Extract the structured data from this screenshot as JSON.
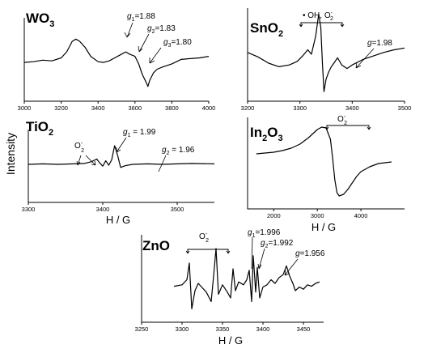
{
  "y_axis_label": "Intensity",
  "chart_data": [
    {
      "id": "wo3",
      "type": "line",
      "title": "WO",
      "title_sub": "3",
      "xlim": [
        3000,
        4000
      ],
      "xticks": [
        3000,
        3200,
        3400,
        3600,
        3800,
        4000
      ],
      "xlabel": "",
      "series": [
        {
          "x": [
            3000,
            3050,
            3100,
            3150,
            3200,
            3230,
            3260,
            3280,
            3300,
            3330,
            3360,
            3400,
            3430,
            3460,
            3490,
            3520,
            3550,
            3570,
            3600,
            3620,
            3640,
            3660,
            3670,
            3680,
            3700,
            3720,
            3750,
            3800,
            3850,
            3900,
            3950,
            4000
          ],
          "y": [
            0.44,
            0.45,
            0.47,
            0.46,
            0.5,
            0.58,
            0.72,
            0.75,
            0.72,
            0.64,
            0.52,
            0.45,
            0.44,
            0.46,
            0.5,
            0.54,
            0.58,
            0.55,
            0.52,
            0.42,
            0.28,
            0.18,
            0.12,
            0.2,
            0.3,
            0.35,
            0.38,
            0.42,
            0.48,
            0.49,
            0.5,
            0.52
          ]
        }
      ],
      "annotations": [
        {
          "letter": "g",
          "sub": "1",
          "value": "=1.88"
        },
        {
          "letter": "g",
          "sub": "2",
          "value": "=1.83"
        },
        {
          "letter": "g",
          "sub": "3",
          "value": "=1.80"
        }
      ]
    },
    {
      "id": "sno2",
      "type": "line",
      "title": "SnO",
      "title_sub": "2",
      "xlim": [
        3200,
        3500
      ],
      "xticks": [
        3200,
        3300,
        3400,
        3500
      ],
      "xlabel": "",
      "series": [
        {
          "x": [
            3200,
            3220,
            3240,
            3260,
            3280,
            3295,
            3305,
            3315,
            3322,
            3330,
            3336,
            3340,
            3343,
            3346,
            3350,
            3355,
            3360,
            3365,
            3372,
            3380,
            3390,
            3400,
            3420,
            3440,
            3460,
            3480,
            3500
          ],
          "y": [
            0.52,
            0.47,
            0.4,
            0.36,
            0.38,
            0.42,
            0.48,
            0.55,
            0.5,
            0.7,
            0.95,
            0.8,
            0.4,
            0.08,
            0.22,
            0.3,
            0.36,
            0.4,
            0.46,
            0.38,
            0.34,
            0.38,
            0.44,
            0.48,
            0.52,
            0.55,
            0.57
          ]
        }
      ],
      "annotations": [
        {
          "text": "• OH, O",
          "sup": "-",
          "sub": "2"
        },
        {
          "letter": "g",
          "value": "=1.98"
        }
      ]
    },
    {
      "id": "tio2",
      "type": "line",
      "title": "TiO",
      "title_sub": "2",
      "xlim": [
        3300,
        3550
      ],
      "xticks": [
        3300,
        3400,
        3500
      ],
      "xlabel": "H / G",
      "series": [
        {
          "x": [
            3300,
            3320,
            3340,
            3360,
            3375,
            3385,
            3392,
            3396,
            3400,
            3404,
            3408,
            3412,
            3416,
            3420,
            3424,
            3430,
            3440,
            3460,
            3480,
            3500,
            3520,
            3550
          ],
          "y": [
            0.4,
            0.41,
            0.4,
            0.41,
            0.42,
            0.46,
            0.52,
            0.43,
            0.36,
            0.48,
            0.38,
            0.5,
            0.82,
            0.6,
            0.33,
            0.37,
            0.4,
            0.41,
            0.4,
            0.41,
            0.42,
            0.41
          ]
        }
      ],
      "annotations": [
        {
          "text": "O",
          "sup": "-",
          "sub": "2"
        },
        {
          "letter": "g",
          "sub": "1",
          "value": " = 1.99"
        },
        {
          "letter": "g",
          "sub": "2",
          "value": " = 1.96"
        }
      ]
    },
    {
      "id": "in2o3",
      "type": "line",
      "title": "In",
      "title_sub": "2",
      "title_rest": "O",
      "title_sub2": "3",
      "xlim": [
        1400,
        5000
      ],
      "xticks": [
        2000,
        3000,
        4000
      ],
      "xlabel": "H / G",
      "series": [
        {
          "x": [
            1600,
            1800,
            2000,
            2200,
            2400,
            2600,
            2800,
            3000,
            3100,
            3200,
            3300,
            3350,
            3400,
            3450,
            3500,
            3600,
            3700,
            3800,
            3900,
            4000,
            4200,
            4400,
            4700
          ],
          "y": [
            0.6,
            0.61,
            0.62,
            0.64,
            0.67,
            0.72,
            0.8,
            0.9,
            0.93,
            0.92,
            0.78,
            0.55,
            0.28,
            0.12,
            0.08,
            0.1,
            0.16,
            0.24,
            0.32,
            0.38,
            0.44,
            0.48,
            0.5
          ]
        }
      ],
      "annotations": [
        {
          "text": "O",
          "sup": "-",
          "sub": "2"
        }
      ]
    },
    {
      "id": "zno",
      "type": "line",
      "title": "ZnO",
      "xlim": [
        3250,
        3475
      ],
      "xticks": [
        3250,
        3300,
        3350,
        3400,
        3450
      ],
      "xlabel": "H / G",
      "series": [
        {
          "x": [
            3290,
            3300,
            3306,
            3309,
            3312,
            3316,
            3320,
            3325,
            3330,
            3336,
            3339,
            3342,
            3345,
            3350,
            3356,
            3360,
            3363,
            3366,
            3370,
            3376,
            3380,
            3383,
            3386,
            3388,
            3391,
            3393,
            3396,
            3400,
            3405,
            3410,
            3415,
            3420,
            3425,
            3429,
            3433,
            3437,
            3440,
            3445,
            3450,
            3455,
            3460,
            3465,
            3470
          ],
          "y": [
            0.46,
            0.48,
            0.55,
            0.78,
            0.15,
            0.4,
            0.5,
            0.44,
            0.38,
            0.25,
            0.6,
            0.98,
            0.35,
            0.48,
            0.38,
            0.3,
            0.7,
            0.4,
            0.52,
            0.48,
            0.55,
            0.68,
            0.25,
            0.88,
            0.38,
            0.72,
            0.3,
            0.45,
            0.48,
            0.55,
            0.5,
            0.58,
            0.62,
            0.74,
            0.6,
            0.5,
            0.4,
            0.45,
            0.42,
            0.48,
            0.46,
            0.5,
            0.52
          ]
        }
      ],
      "annotations": [
        {
          "text": "O",
          "sup": "-",
          "sub": "2"
        },
        {
          "letter": "g",
          "sub": "1",
          "value": "=1.996"
        },
        {
          "letter": "g",
          "sub": "2",
          "value": "=1.992"
        },
        {
          "letter": "g",
          "value": "=1.956"
        }
      ]
    }
  ]
}
